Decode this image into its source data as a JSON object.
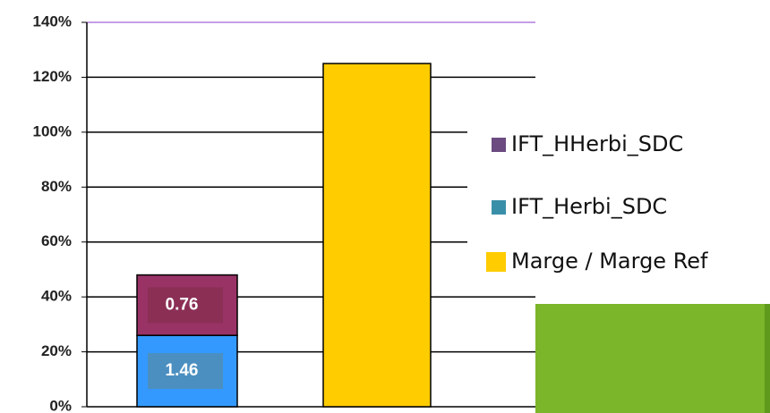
{
  "chart_data": {
    "type": "stacked_bar",
    "categories": [
      null,
      null
    ],
    "series": [
      {
        "name": "IFT_Herbi_SDC",
        "color": "#3399ff",
        "legend_color": "#3a8fa8",
        "values": [
          26,
          null
        ],
        "point_labels": [
          "1.46",
          null
        ]
      },
      {
        "name": "IFT_HHerbi_SDC",
        "color": "#993366",
        "legend_color": "#6b4b80",
        "values": [
          22,
          null
        ],
        "point_labels": [
          "0.76",
          null
        ]
      },
      {
        "name": "Marge / Marge Ref",
        "color": "#ffcc00",
        "legend_color": "#ffcc00",
        "values": [
          null,
          125
        ]
      }
    ],
    "ylim": [
      0,
      140
    ],
    "yticks": [
      {
        "value": 0,
        "label": "0%"
      },
      {
        "value": 20,
        "label": "20%"
      },
      {
        "value": 40,
        "label": "40%"
      },
      {
        "value": 60,
        "label": "60%"
      },
      {
        "value": 80,
        "label": "80%"
      },
      {
        "value": 100,
        "label": "100%"
      },
      {
        "value": 120,
        "label": "120%"
      },
      {
        "value": 140,
        "label": "140%"
      }
    ],
    "grid": true,
    "legend": "right"
  }
}
